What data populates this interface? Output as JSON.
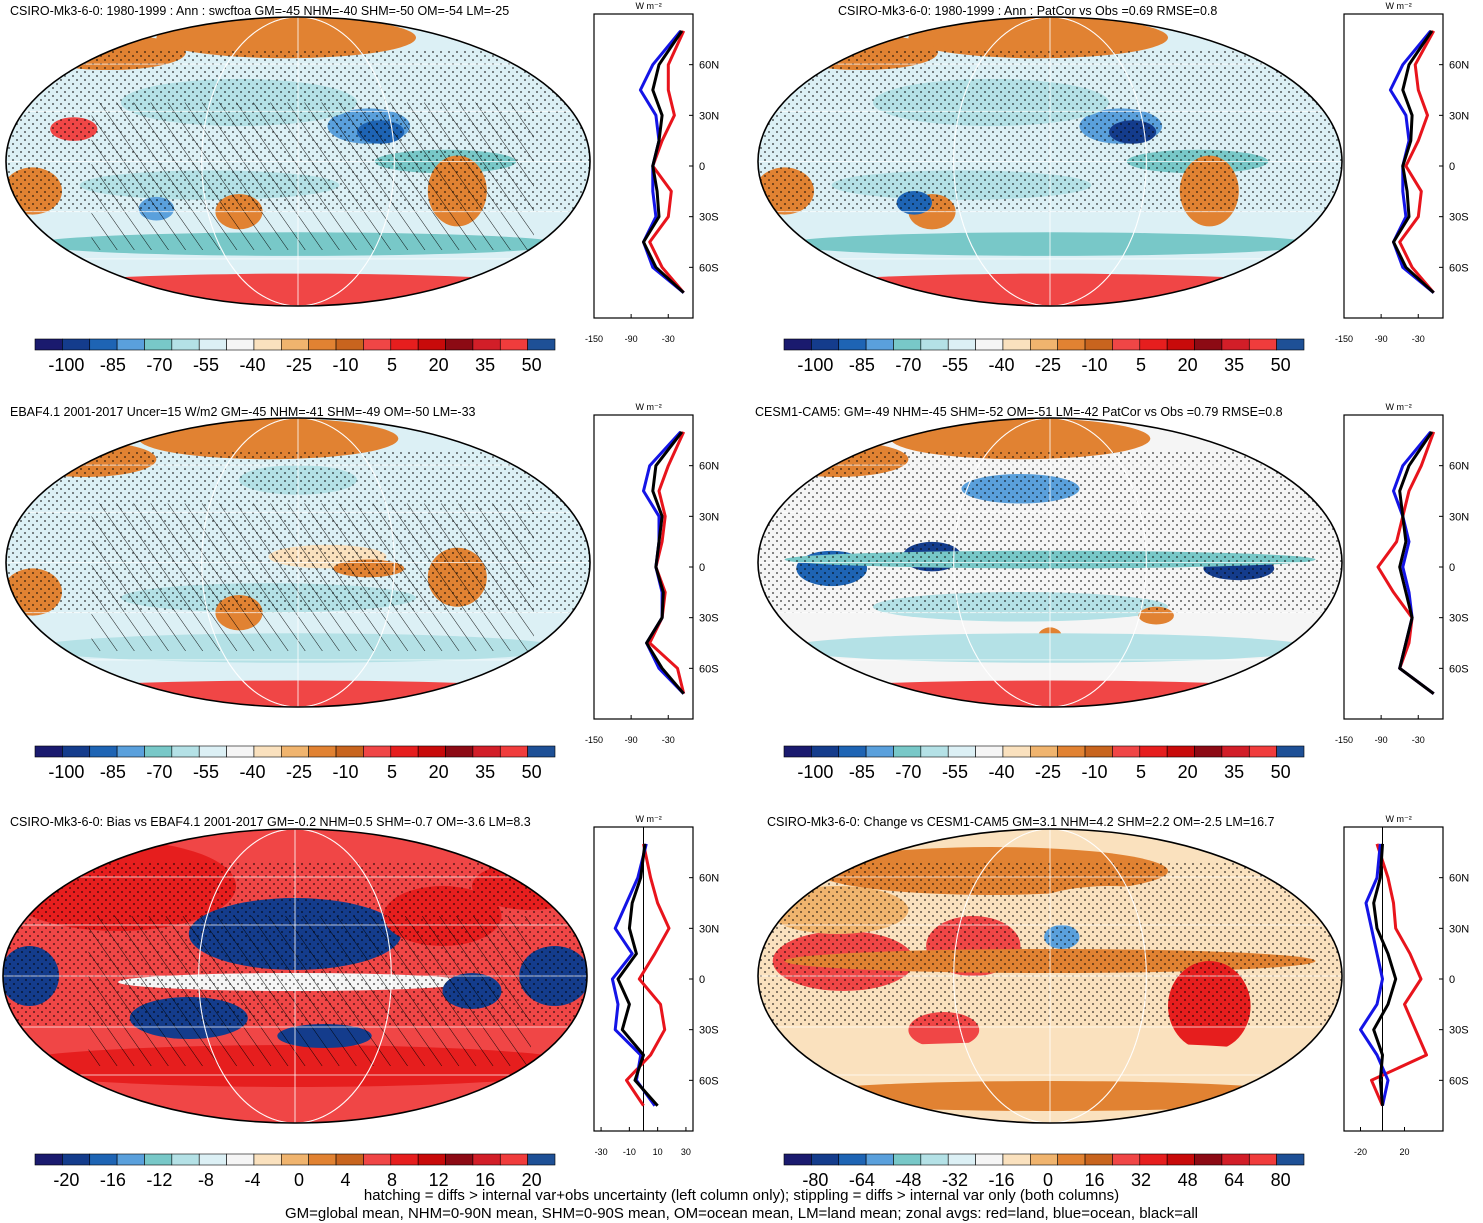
{
  "colors": {
    "land_line": "#e8141c",
    "ocean_line": "#1414e6",
    "all_line": "#000000",
    "palette_anom": [
      "#1a1a6e",
      "#143c8c",
      "#1e64b4",
      "#5aa0dc",
      "#78c8c8",
      "#b4e1e6",
      "#dcf0f5",
      "#f5f5f5",
      "#fae1be",
      "#f0b46e",
      "#e18232",
      "#c8641e",
      "#f04646",
      "#e61e1e",
      "#c80a0a",
      "#8c0a14",
      "#d21e28",
      "#f03c3c",
      "#1e5096"
    ],
    "palette_bias": [
      "#1a1a6e",
      "#143c8c",
      "#1e64b4",
      "#5aa0dc",
      "#78c8c8",
      "#b4e1e6",
      "#dcf0f5",
      "#f5f5f5",
      "#fae1be",
      "#f0b46e",
      "#e18232",
      "#c8641e",
      "#f04646",
      "#e61e1e",
      "#c80a0a",
      "#8c0a14",
      "#d21e28",
      "#f03c3c",
      "#1e5096"
    ]
  },
  "panels": [
    {
      "title": "CSIRO-Mk3-6-0: 1980-1999 : Ann : swcftoa GM=-45 NHM=-40 SHM=-50 OM=-54 LM=-25",
      "hatched": true,
      "cbar_labels": [
        "-100",
        "-85",
        "-70",
        "-55",
        "-40",
        "-25",
        "-10",
        "5",
        "20",
        "35",
        "50"
      ],
      "zonal_xticks": [
        "-150",
        "-90",
        "-30"
      ],
      "zonal_unit": "W m⁻²",
      "lat_labels": [
        "60N",
        "30N",
        "0",
        "30S",
        "60S"
      ]
    },
    {
      "title": "CSIRO-Mk3-6-0: 1980-1999 : Ann : PatCor vs Obs =0.69 RMSE=0.8",
      "hatched": false,
      "cbar_labels": [
        "-100",
        "-85",
        "-70",
        "-55",
        "-40",
        "-25",
        "-10",
        "5",
        "20",
        "35",
        "50"
      ],
      "zonal_xticks": [
        "-150",
        "-90",
        "-30"
      ],
      "zonal_unit": "W m⁻²",
      "lat_labels": [
        "60N",
        "30N",
        "0",
        "30S",
        "60S"
      ]
    },
    {
      "title": "EBAF4.1 2001-2017 Uncer=15 W/m2 GM=-45 NHM=-41 SHM=-49 OM=-50 LM=-33",
      "hatched": true,
      "cbar_labels": [
        "-100",
        "-85",
        "-70",
        "-55",
        "-40",
        "-25",
        "-10",
        "5",
        "20",
        "35",
        "50"
      ],
      "zonal_xticks": [
        "-150",
        "-90",
        "-30"
      ],
      "zonal_unit": "W m⁻²",
      "lat_labels": [
        "60N",
        "30N",
        "0",
        "30S",
        "60S"
      ]
    },
    {
      "title": "CESM1-CAM5: GM=-49 NHM=-45 SHM=-52 OM=-51 LM=-42 PatCor vs Obs =0.79 RMSE=0.8",
      "hatched": false,
      "cbar_labels": [
        "-100",
        "-85",
        "-70",
        "-55",
        "-40",
        "-25",
        "-10",
        "5",
        "20",
        "35",
        "50"
      ],
      "zonal_xticks": [
        "-150",
        "-90",
        "-30"
      ],
      "zonal_unit": "W m⁻²",
      "lat_labels": [
        "60N",
        "30N",
        "0",
        "30S",
        "60S"
      ]
    },
    {
      "title": "CSIRO-Mk3-6-0: Bias vs EBAF4.1 2001-2017 GM=-0.2 NHM=0.5 SHM=-0.7 OM=-3.6 LM=8.3",
      "hatched": true,
      "cbar_labels": [
        "-20",
        "-16",
        "-12",
        "-8",
        "-4",
        "0",
        "4",
        "8",
        "12",
        "16",
        "20"
      ],
      "zonal_xticks": [
        "-30",
        "-10",
        "10",
        "30"
      ],
      "zonal_unit": "W m⁻²",
      "lat_labels": [
        "60N",
        "30N",
        "0",
        "30S",
        "60S"
      ]
    },
    {
      "title": "CSIRO-Mk3-6-0: Change vs CESM1-CAM5 GM=3.1 NHM=4.2 SHM=2.2 OM=-2.5 LM=16.7",
      "hatched": false,
      "cbar_labels": [
        "-80",
        "-64",
        "-48",
        "-32",
        "-16",
        "0",
        "16",
        "32",
        "48",
        "64",
        "80"
      ],
      "zonal_xticks": [
        "-20",
        "20"
      ],
      "zonal_unit": "W m⁻²",
      "lat_labels": [
        "60N",
        "30N",
        "0",
        "30S",
        "60S"
      ]
    }
  ],
  "footer": {
    "line1": "hatching = diffs > internal var+obs uncertainty (left column only); stippling = diffs > internal var only (both columns)",
    "line2": "GM=global mean, NHM=0-90N mean, SHM=0-90S mean, OM=ocean mean, LM=land mean; zonal avgs: red=land, blue=ocean, black=all"
  },
  "chart_data": [
    {
      "type": "heatmap",
      "title": "CSIRO-Mk3-6-0: 1980-1999 : Ann : swcftoa GM=-45 NHM=-40 SHM=-50 OM=-54 LM=-25",
      "colorbar": [
        -100,
        -85,
        -70,
        -55,
        -40,
        -25,
        -10,
        5,
        20,
        35,
        50
      ],
      "zonal_mean": {
        "lat": [
          80,
          60,
          45,
          30,
          15,
          0,
          -15,
          -30,
          -45,
          -60,
          -75
        ],
        "land": [
          -5,
          -30,
          -30,
          -20,
          -40,
          -55,
          -25,
          -30,
          -60,
          -40,
          -5
        ],
        "ocean": [
          -10,
          -55,
          -75,
          -50,
          -45,
          -55,
          -55,
          -50,
          -70,
          -55,
          -5
        ],
        "all": [
          -8,
          -45,
          -55,
          -40,
          -45,
          -55,
          -48,
          -45,
          -70,
          -50,
          -5
        ]
      }
    },
    {
      "type": "heatmap",
      "title": "CSIRO-Mk3-6-0: 1980-1999 : Ann : PatCor vs Obs =0.69 RMSE=0.8",
      "colorbar": [
        -100,
        -85,
        -70,
        -55,
        -40,
        -25,
        -10,
        5,
        20,
        35,
        50
      ],
      "zonal_mean": {
        "lat": [
          80,
          60,
          45,
          30,
          15,
          0,
          -15,
          -30,
          -45,
          -60,
          -75
        ],
        "land": [
          -5,
          -35,
          -30,
          -15,
          -30,
          -50,
          -25,
          -30,
          -60,
          -40,
          -5
        ],
        "ocean": [
          -10,
          -55,
          -75,
          -50,
          -45,
          -55,
          -55,
          -50,
          -70,
          -55,
          -5
        ],
        "all": [
          -8,
          -45,
          -55,
          -40,
          -42,
          -55,
          -48,
          -45,
          -70,
          -50,
          -5
        ]
      }
    },
    {
      "type": "heatmap",
      "title": "EBAF4.1 2001-2017 Uncer=15 W/m2 GM=-45 NHM=-41 SHM=-49 OM=-50 LM=-33",
      "colorbar": [
        -100,
        -85,
        -70,
        -55,
        -40,
        -25,
        -10,
        5,
        20,
        35,
        50
      ],
      "zonal_mean": {
        "lat": [
          80,
          60,
          45,
          30,
          15,
          0,
          -15,
          -30,
          -45,
          -60,
          -75
        ],
        "land": [
          -5,
          -30,
          -45,
          -35,
          -40,
          -50,
          -35,
          -40,
          -60,
          -15,
          -5
        ],
        "ocean": [
          -10,
          -60,
          -70,
          -45,
          -45,
          -50,
          -40,
          -40,
          -65,
          -45,
          -5
        ],
        "all": [
          -8,
          -50,
          -55,
          -40,
          -45,
          -50,
          -38,
          -40,
          -65,
          -40,
          -5
        ]
      }
    },
    {
      "type": "heatmap",
      "title": "CESM1-CAM5: GM=-49 NHM=-45 SHM=-52 OM=-51 LM=-42 PatCor vs Obs =0.79 RMSE=0.8",
      "colorbar": [
        -100,
        -85,
        -70,
        -55,
        -40,
        -25,
        -10,
        5,
        20,
        35,
        50
      ],
      "zonal_mean": {
        "lat": [
          80,
          60,
          45,
          30,
          15,
          0,
          -15,
          -30,
          -45,
          -60,
          -75
        ],
        "land": [
          -5,
          -25,
          -45,
          -55,
          -65,
          -95,
          -70,
          -40,
          -45,
          -60,
          -5
        ],
        "ocean": [
          -10,
          -55,
          -70,
          -55,
          -45,
          -55,
          -45,
          -40,
          -50,
          -60,
          -5
        ],
        "all": [
          -8,
          -45,
          -60,
          -55,
          -50,
          -60,
          -50,
          -40,
          -50,
          -60,
          -5
        ]
      }
    },
    {
      "type": "heatmap",
      "title": "CSIRO-Mk3-6-0: Bias vs EBAF4.1 2001-2017 GM=-0.2 NHM=0.5 SHM=-0.7 OM=-3.6 LM=8.3",
      "colorbar": [
        -20,
        -16,
        -12,
        -8,
        -4,
        0,
        4,
        8,
        12,
        16,
        20
      ],
      "zonal_mean": {
        "lat": [
          80,
          60,
          45,
          30,
          15,
          0,
          -15,
          -30,
          -45,
          -60,
          -75
        ],
        "land": [
          0,
          5,
          10,
          18,
          8,
          -3,
          12,
          15,
          5,
          -12,
          0
        ],
        "ocean": [
          2,
          -4,
          -12,
          -20,
          -8,
          -22,
          -18,
          -20,
          -2,
          -5,
          8
        ],
        "all": [
          1,
          -2,
          -8,
          -10,
          -5,
          -18,
          -10,
          -15,
          0,
          -6,
          10
        ]
      }
    },
    {
      "type": "heatmap",
      "title": "CSIRO-Mk3-6-0: Change vs CESM1-CAM5 GM=3.1 NHM=4.2 SHM=2.2 OM=-2.5 LM=16.7",
      "colorbar": [
        -80,
        -64,
        -48,
        -32,
        -16,
        0,
        16,
        32,
        48,
        64,
        80
      ],
      "zonal_mean": {
        "lat": [
          80,
          60,
          45,
          30,
          15,
          0,
          -15,
          -30,
          -45,
          -60,
          -75
        ],
        "land": [
          -5,
          5,
          10,
          12,
          25,
          35,
          20,
          30,
          40,
          -10,
          0
        ],
        "ocean": [
          -2,
          -5,
          -15,
          -10,
          -5,
          0,
          -5,
          -20,
          -5,
          5,
          0
        ],
        "all": [
          0,
          -2,
          -8,
          -5,
          5,
          12,
          5,
          -8,
          0,
          -2,
          0
        ]
      }
    }
  ]
}
